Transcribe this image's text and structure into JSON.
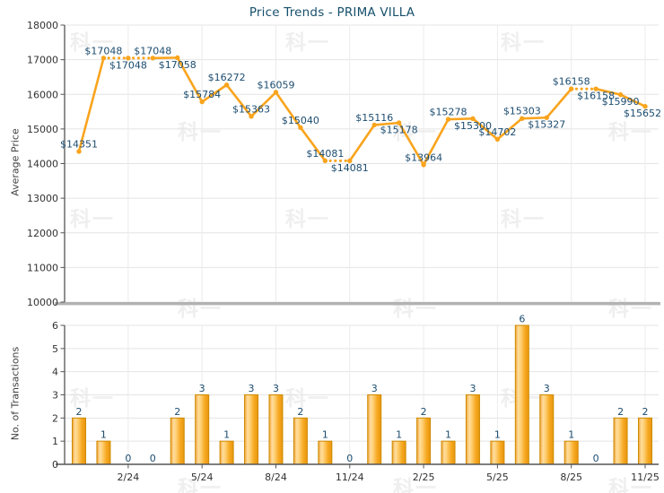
{
  "colors": {
    "series_orange": "#F9A41D",
    "bar_border": "#CE8A00",
    "bar_light": "#FFDD9E",
    "bar_dark": "#E89610",
    "data_label_blue": "#1C4C6F",
    "title_color": "#17506C",
    "axis_text": "#323232",
    "axis_line": "#555555",
    "grid_line": "#E4E4E4",
    "vgrid_line": "#EBEBEB",
    "canvas_base": "#B2B2B2"
  },
  "watermark": {
    "text": "科一"
  },
  "chart_data": [
    {
      "type": "line",
      "title": "Price Trends - PRIMA VILLA",
      "ylabel": "Average Price",
      "ylim": [
        10000,
        18000
      ],
      "yticks": [
        18000,
        17000,
        16000,
        15000,
        14000,
        13000,
        12000,
        11000,
        10000
      ],
      "grid": true,
      "legend": "none",
      "x_tick_labels": [
        "2/24",
        "5/24",
        "8/24",
        "11/24",
        "2/25",
        "5/25",
        "8/25",
        "11/25"
      ],
      "x_tick_first_index": 2,
      "x_tick_every": 3,
      "points": [
        {
          "value": 14351,
          "label": "$14351",
          "label_side": "above",
          "dotted_from_prev": false
        },
        {
          "value": 17048,
          "label": "$17048",
          "label_side": "above",
          "dotted_from_prev": false
        },
        {
          "value": 17048,
          "label": "$17048",
          "label_side": "below",
          "dotted_from_prev": true
        },
        {
          "value": 17048,
          "label": "$17048",
          "label_side": "above",
          "dotted_from_prev": true
        },
        {
          "value": 17058,
          "label": "$17058",
          "label_side": "below",
          "dotted_from_prev": false
        },
        {
          "value": 15784,
          "label": "$15784",
          "label_side": "above",
          "dotted_from_prev": false
        },
        {
          "value": 16272,
          "label": "$16272",
          "label_side": "above",
          "dotted_from_prev": false
        },
        {
          "value": 15363,
          "label": "$15363",
          "label_side": "above",
          "dotted_from_prev": false
        },
        {
          "value": 16059,
          "label": "$16059",
          "label_side": "above",
          "dotted_from_prev": false
        },
        {
          "value": 15040,
          "label": "$15040",
          "label_side": "above",
          "dotted_from_prev": false
        },
        {
          "value": 14081,
          "label": "$14081",
          "label_side": "above",
          "dotted_from_prev": false
        },
        {
          "value": 14081,
          "label": "$14081",
          "label_side": "below",
          "dotted_from_prev": true
        },
        {
          "value": 15116,
          "label": "$15116",
          "label_side": "above",
          "dotted_from_prev": false
        },
        {
          "value": 15178,
          "label": "$15178",
          "label_side": "below",
          "dotted_from_prev": false
        },
        {
          "value": 13964,
          "label": "$13964",
          "label_side": "above",
          "dotted_from_prev": false
        },
        {
          "value": 15278,
          "label": "$15278",
          "label_side": "above",
          "dotted_from_prev": false
        },
        {
          "value": 15300,
          "label": "$15300",
          "label_side": "below",
          "dotted_from_prev": false
        },
        {
          "value": 14702,
          "label": "$14702",
          "label_side": "above",
          "dotted_from_prev": false
        },
        {
          "value": 15303,
          "label": "$15303",
          "label_side": "above",
          "dotted_from_prev": false
        },
        {
          "value": 15327,
          "label": "$15327",
          "label_side": "below",
          "dotted_from_prev": false
        },
        {
          "value": 16158,
          "label": "$16158",
          "label_side": "above",
          "dotted_from_prev": false
        },
        {
          "value": 16158,
          "label": "$16158",
          "label_side": "below",
          "dotted_from_prev": true
        },
        {
          "value": 15990,
          "label": "$15990",
          "label_side": "below",
          "dotted_from_prev": false
        },
        {
          "value": 15652,
          "label": "$15652",
          "label_side": "below",
          "dotted_from_prev": false
        }
      ]
    },
    {
      "type": "bar",
      "ylabel": "No. of Transactions",
      "ylim": [
        0,
        6
      ],
      "yticks": [
        6,
        5,
        4,
        3,
        2,
        1,
        0
      ],
      "grid": true,
      "legend": "none",
      "x_tick_labels": [
        "2/24",
        "5/24",
        "8/24",
        "11/24",
        "2/25",
        "5/25",
        "8/25",
        "11/25"
      ],
      "x_tick_first_index": 2,
      "x_tick_every": 3,
      "values": [
        2,
        1,
        0,
        0,
        2,
        3,
        1,
        3,
        3,
        2,
        1,
        0,
        3,
        1,
        2,
        1,
        3,
        1,
        6,
        3,
        1,
        0,
        2,
        2
      ]
    }
  ]
}
